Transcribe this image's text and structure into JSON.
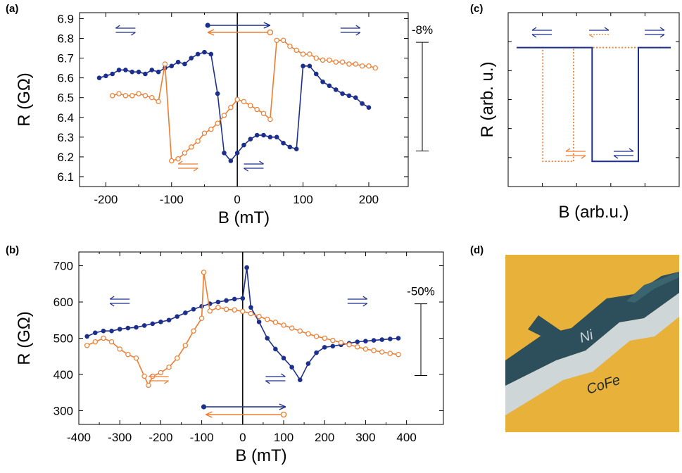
{
  "colors": {
    "blue": "#1c2f8c",
    "orange": "#ee7d31",
    "axis": "#000000",
    "device_gold": "#e8b13a",
    "device_dark": "#2d4f5b",
    "device_substrate": "#cfd6d8"
  },
  "panels": {
    "a": {
      "label": "(a)"
    },
    "b": {
      "label": "(b)"
    },
    "c": {
      "label": "(c)"
    },
    "d": {
      "label": "(d)",
      "layer_top": "Ni",
      "layer_bottom": "CoFe",
      "icons": [
        "device-sketch"
      ]
    }
  },
  "chart_data": [
    {
      "id": "a",
      "type": "scatter",
      "xlabel": "B (mT)",
      "ylabel": "R (GΩ)",
      "xlim": [
        -240,
        260
      ],
      "ylim": [
        6.05,
        6.93
      ],
      "xticks": [
        -200,
        -100,
        0,
        100,
        200
      ],
      "xtick_labels": [
        "-200",
        "-100",
        "0",
        "100",
        "200"
      ],
      "yticks": [
        6.1,
        6.2,
        6.3,
        6.4,
        6.5,
        6.6,
        6.7,
        6.8,
        6.9
      ],
      "ytick_labels": [
        "6.1",
        "6.2",
        "6.3",
        "6.4",
        "6.5",
        "6.6",
        "6.7",
        "6.8",
        "6.9"
      ],
      "grid": false,
      "vline_at": 0,
      "scale_bar": {
        "label": "-8%",
        "y_top": 6.78,
        "y_bottom": 6.23
      },
      "series": [
        {
          "color": "blue",
          "marker": "filled-circle",
          "sweep": "up",
          "x": [
            -210,
            -200,
            -190,
            -180,
            -170,
            -160,
            -150,
            -140,
            -130,
            -120,
            -110,
            -100,
            -90,
            -80,
            -70,
            -60,
            -50,
            -40,
            -30,
            -20,
            -10,
            0,
            10,
            20,
            30,
            40,
            50,
            60,
            70,
            80,
            90,
            100,
            110,
            120,
            130,
            140,
            150,
            160,
            170,
            180,
            190,
            200
          ],
          "y": [
            6.6,
            6.61,
            6.62,
            6.64,
            6.64,
            6.63,
            6.63,
            6.62,
            6.64,
            6.63,
            6.65,
            6.66,
            6.68,
            6.67,
            6.7,
            6.72,
            6.73,
            6.72,
            6.52,
            6.22,
            6.18,
            6.22,
            6.26,
            6.29,
            6.31,
            6.31,
            6.3,
            6.3,
            6.27,
            6.25,
            6.24,
            6.66,
            6.66,
            6.62,
            6.58,
            6.56,
            6.54,
            6.52,
            6.51,
            6.5,
            6.47,
            6.45
          ]
        },
        {
          "color": "orange",
          "marker": "open-circle",
          "sweep": "down",
          "x": [
            -190,
            -180,
            -170,
            -160,
            -150,
            -140,
            -130,
            -120,
            -110,
            -100,
            -90,
            -80,
            -70,
            -60,
            -50,
            -40,
            -30,
            -20,
            -10,
            0,
            10,
            20,
            30,
            40,
            50,
            60,
            70,
            80,
            90,
            100,
            110,
            120,
            130,
            140,
            150,
            160,
            170,
            180,
            190,
            200,
            210
          ],
          "y": [
            6.51,
            6.52,
            6.51,
            6.51,
            6.52,
            6.51,
            6.5,
            6.48,
            6.67,
            6.18,
            6.19,
            6.22,
            6.25,
            6.28,
            6.32,
            6.34,
            6.37,
            6.41,
            6.45,
            6.49,
            6.48,
            6.46,
            6.44,
            6.42,
            6.39,
            6.79,
            6.79,
            6.76,
            6.74,
            6.72,
            6.72,
            6.7,
            6.69,
            6.69,
            6.68,
            6.68,
            6.67,
            6.67,
            6.66,
            6.66,
            6.65
          ]
        }
      ]
    },
    {
      "id": "b",
      "type": "scatter",
      "xlabel": "B (mT)",
      "ylabel": "R (GΩ)",
      "xlim": [
        -400,
        490
      ],
      "ylim": [
        262,
        738
      ],
      "xticks": [
        -400,
        -300,
        -200,
        -100,
        0,
        100,
        200,
        300,
        400
      ],
      "xtick_labels": [
        "-400",
        "-300",
        "-200",
        "-100",
        "0",
        "100",
        "200",
        "300",
        "400"
      ],
      "yticks": [
        300,
        400,
        500,
        600,
        700
      ],
      "ytick_labels": [
        "300",
        "400",
        "500",
        "600",
        "700"
      ],
      "grid": false,
      "vline_at": 0,
      "scale_bar": {
        "label": "-50%",
        "y_top": 595,
        "y_bottom": 397
      },
      "series": [
        {
          "color": "blue",
          "marker": "filled-circle",
          "sweep": "up",
          "x": [
            -380,
            -360,
            -340,
            -320,
            -300,
            -280,
            -260,
            -240,
            -220,
            -200,
            -180,
            -160,
            -140,
            -120,
            -100,
            -80,
            -60,
            -40,
            -20,
            0,
            10,
            20,
            40,
            60,
            80,
            100,
            120,
            140,
            160,
            180,
            200,
            220,
            240,
            260,
            280,
            300,
            320,
            340,
            360,
            380
          ],
          "y": [
            505,
            515,
            520,
            520,
            525,
            528,
            530,
            535,
            540,
            545,
            550,
            560,
            570,
            580,
            588,
            595,
            600,
            604,
            608,
            610,
            695,
            585,
            545,
            500,
            470,
            445,
            420,
            385,
            430,
            460,
            475,
            478,
            482,
            486,
            490,
            492,
            494,
            496,
            498,
            500
          ]
        },
        {
          "color": "orange",
          "marker": "open-circle",
          "sweep": "down",
          "x": [
            -380,
            -360,
            -340,
            -320,
            -300,
            -280,
            -260,
            -240,
            -230,
            -220,
            -200,
            -180,
            -160,
            -140,
            -120,
            -100,
            -95,
            -80,
            -60,
            -40,
            -20,
            0,
            20,
            40,
            60,
            80,
            100,
            120,
            140,
            160,
            180,
            200,
            220,
            240,
            260,
            280,
            300,
            320,
            340,
            360,
            380
          ],
          "y": [
            480,
            490,
            500,
            490,
            470,
            455,
            445,
            395,
            370,
            395,
            405,
            420,
            445,
            480,
            520,
            555,
            682,
            575,
            585,
            580,
            578,
            574,
            568,
            560,
            552,
            544,
            536,
            528,
            520,
            512,
            505,
            500,
            494,
            488,
            482,
            476,
            470,
            466,
            462,
            458,
            455
          ]
        }
      ]
    },
    {
      "id": "c",
      "type": "line",
      "xlabel": "B (arb.u.)",
      "ylabel": "R (arb. u.)",
      "xlim": [
        0,
        10
      ],
      "ylim": [
        0,
        10
      ],
      "xtick_labels": [],
      "ytick_labels": [],
      "grid": false,
      "series": [
        {
          "color": "orange",
          "style": "dotted",
          "x": [
            0,
            1.7,
            1.7,
            3.7,
            3.7,
            10
          ],
          "y": [
            8.2,
            8.2,
            1.2,
            1.2,
            8.2,
            8.2
          ]
        },
        {
          "color": "blue",
          "style": "solid",
          "x": [
            0,
            4.9,
            4.9,
            7.9,
            7.9,
            10
          ],
          "y": [
            8.2,
            8.2,
            1.2,
            1.2,
            8.2,
            8.2
          ]
        }
      ]
    }
  ]
}
